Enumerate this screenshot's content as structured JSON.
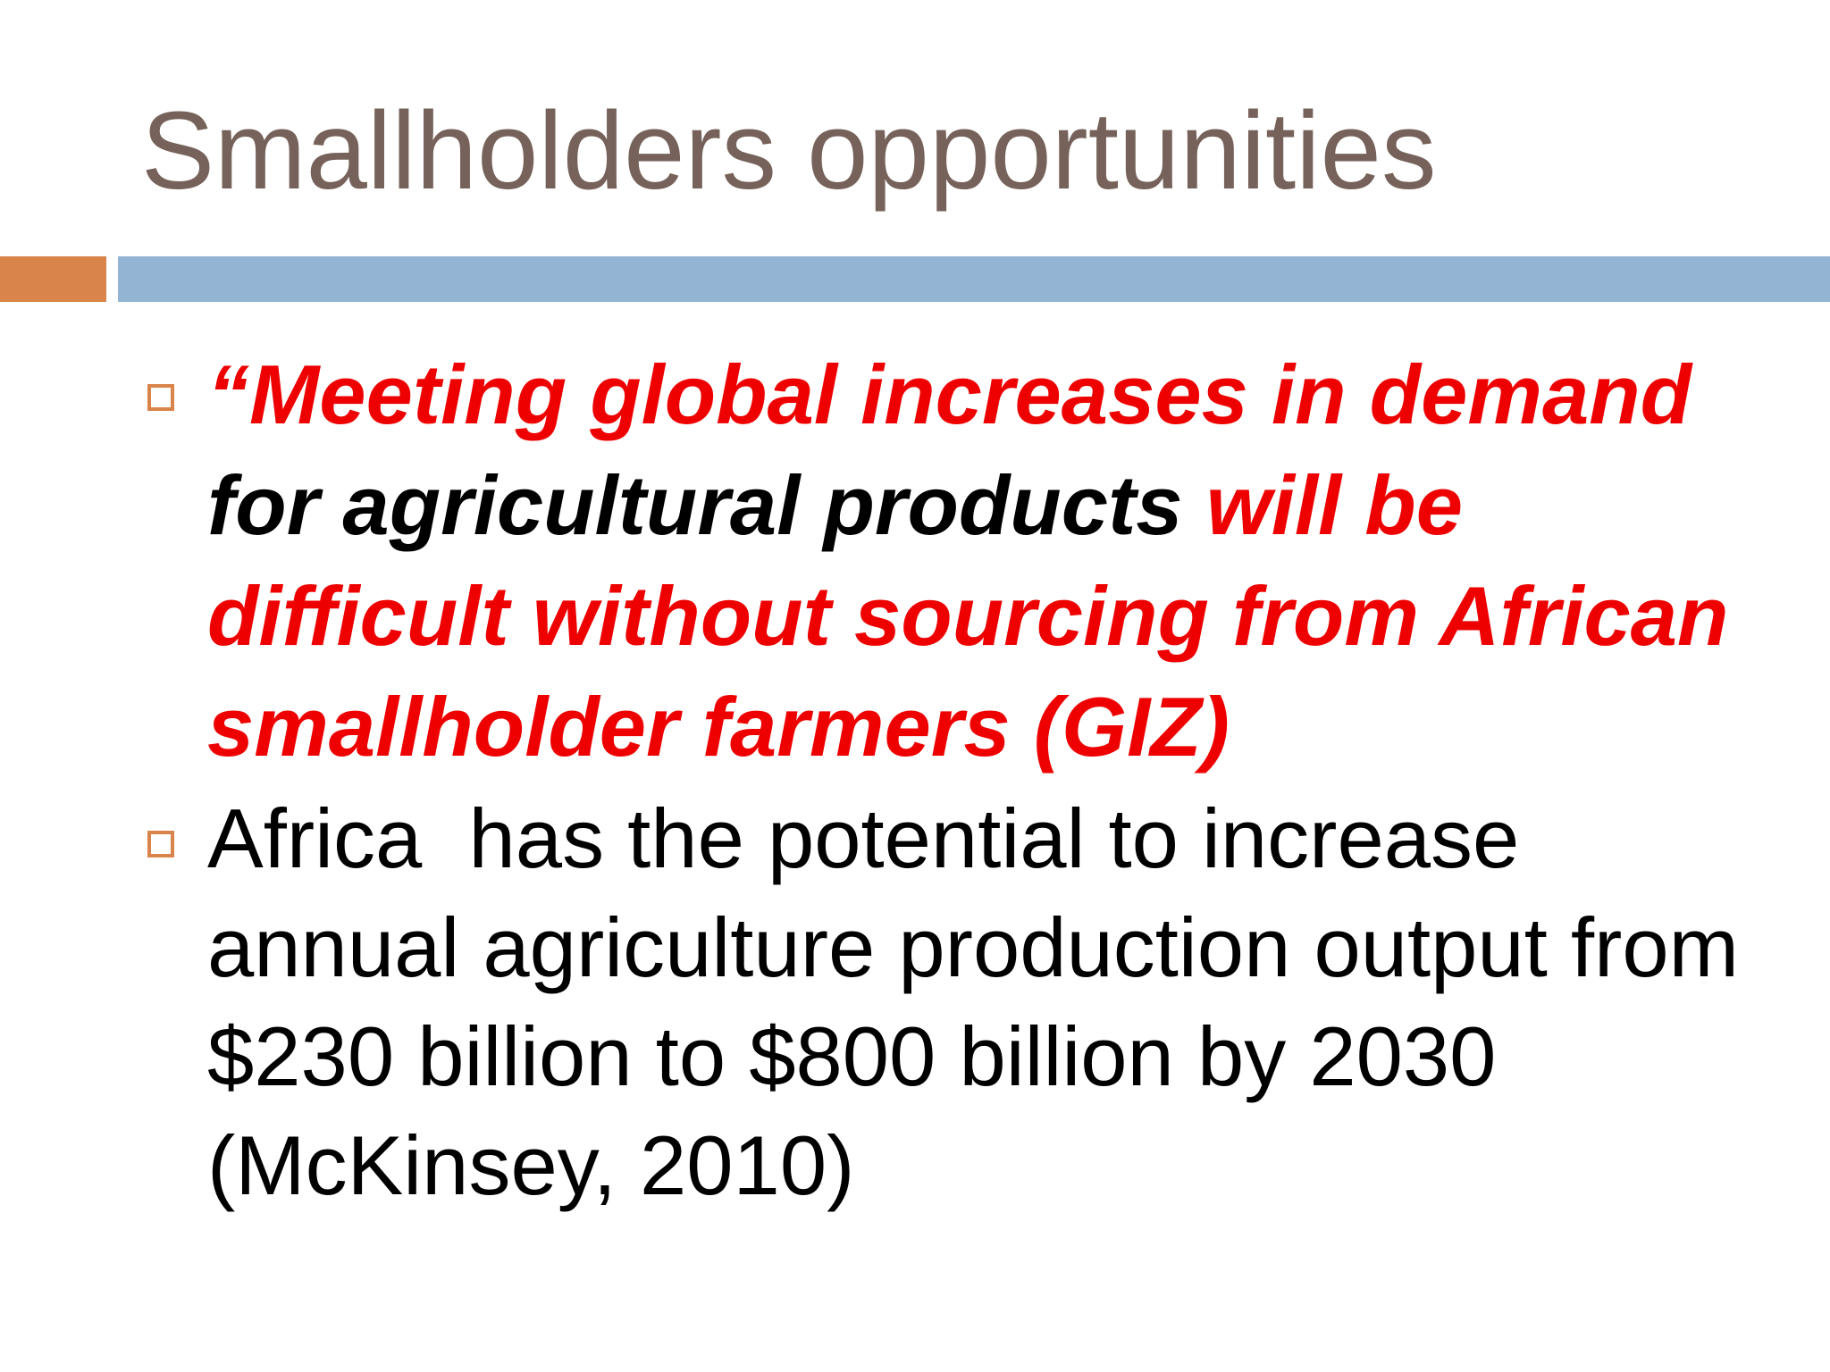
{
  "slide": {
    "title": "Smallholders opportunities",
    "colors": {
      "title": "#76625a",
      "accent_orange": "#d9844a",
      "accent_blue": "#93b4d3",
      "quote_red": "#ee0000"
    },
    "bullets": [
      {
        "marker_icon": "hollow-square-bullet-icon",
        "segments": [
          {
            "text": "“Meeting global increases in demand ",
            "color": "red"
          },
          {
            "text": "for agricultural products ",
            "color": "black"
          },
          {
            "text": "will be difficult without sourcing from African smallholder farmers (GIZ)",
            "color": "red"
          }
        ]
      },
      {
        "marker_icon": "hollow-square-bullet-icon",
        "text": "Africa  has the potential to increase annual agriculture production output from $230 billion to $800 billion by 2030 (McKinsey, 2010)"
      }
    ]
  }
}
